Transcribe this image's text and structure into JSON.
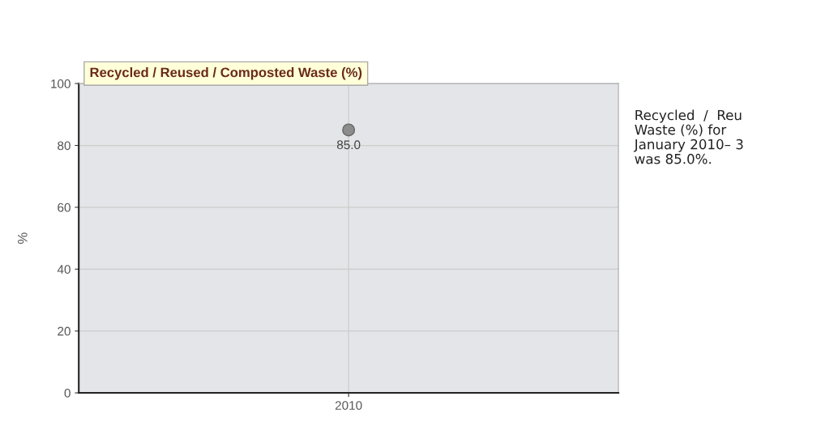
{
  "chart_data": {
    "type": "scatter",
    "title": "Recycled / Reused / Composted Waste (%)",
    "ylabel": "%",
    "categories": [
      "2010"
    ],
    "series": [
      {
        "color": "#8c8c8c",
        "values": [
          85.0
        ]
      }
    ],
    "value_labels": [
      "85.0"
    ],
    "ylim": [
      0,
      100
    ],
    "yticks": [
      0,
      20,
      40,
      60,
      80,
      100
    ],
    "grid": true,
    "marker": "circle",
    "annotations": [
      "Recycled  /  Reu\nWaste (%) for\nJanuary 2010– 3\nwas 85.0%."
    ]
  }
}
